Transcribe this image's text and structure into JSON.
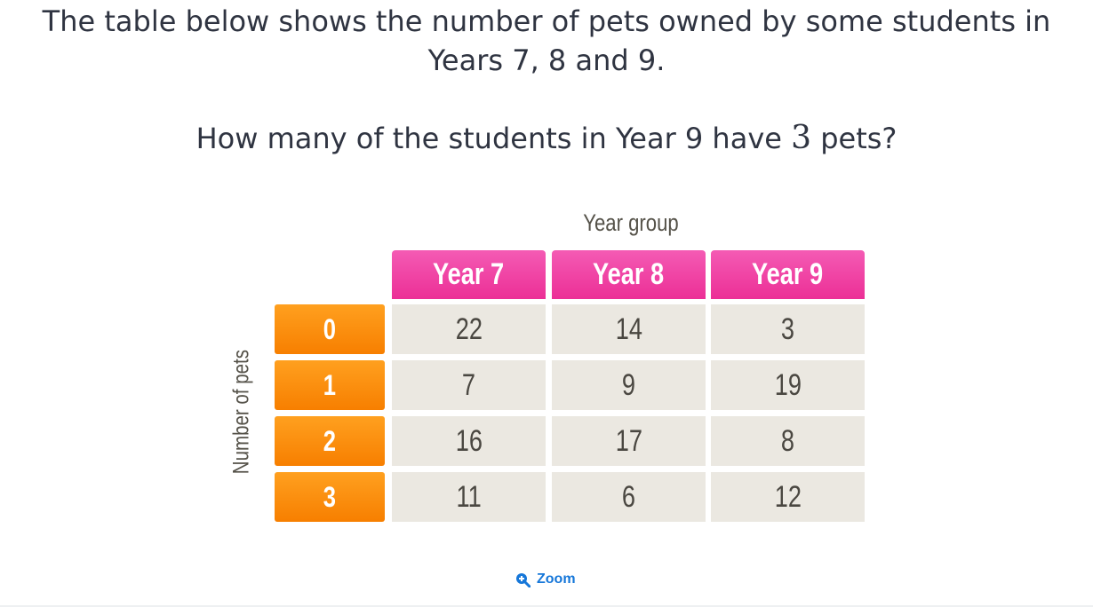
{
  "question": {
    "intro_line1": "The table below shows the number of pets owned by some students in",
    "intro_line2": "Years 7, 8 and 9.",
    "prompt_before": "How many of the students in Year 9 have ",
    "prompt_number": "3",
    "prompt_after": " pets?"
  },
  "table": {
    "column_axis_title": "Year group",
    "row_axis_title": "Number of pets",
    "columns": [
      "Year 7",
      "Year 8",
      "Year 9"
    ],
    "rows": [
      {
        "label": "0",
        "values": [
          "22",
          "14",
          "3"
        ]
      },
      {
        "label": "1",
        "values": [
          "7",
          "9",
          "19"
        ]
      },
      {
        "label": "2",
        "values": [
          "16",
          "17",
          "8"
        ]
      },
      {
        "label": "3",
        "values": [
          "11",
          "6",
          "12"
        ]
      }
    ]
  },
  "zoom": {
    "label": "Zoom",
    "icon": "zoom-in-icon"
  },
  "colors": {
    "header": "#ec2f96",
    "row_label": "#f77f00",
    "cell": "#ebe8e1",
    "link": "#1677d9"
  }
}
